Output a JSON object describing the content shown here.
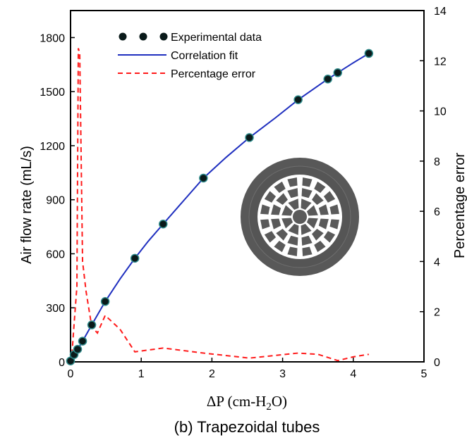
{
  "chart_data": {
    "type": "line",
    "xlabel_main": "ΔP (cm-H",
    "xlabel_sub": "2",
    "xlabel_end": "O)",
    "ylabel": "Air flow rate (mL/s)",
    "y2label": "Percentage error",
    "caption": "(b) Trapezoidal tubes",
    "xlim": [
      0,
      5
    ],
    "ylim": [
      0,
      1950
    ],
    "y2lim": [
      0,
      14
    ],
    "x_ticks": [
      0,
      1,
      2,
      3,
      4,
      5
    ],
    "y_ticks": [
      0,
      300,
      600,
      900,
      1200,
      1500,
      1800
    ],
    "y2_ticks": [
      0,
      2,
      4,
      6,
      8,
      10,
      12,
      14
    ],
    "grid": false,
    "legend_position": "top-left",
    "colors": {
      "experimental": "#0a1a1a",
      "experimental_edge": "#2e8a8a",
      "fit": "#1f2fbf",
      "error": "#ff1a1a",
      "icon": "#555555"
    },
    "series": [
      {
        "name": "Experimental data",
        "kind": "scatter",
        "axis": "left",
        "x": [
          0.0,
          0.05,
          0.1,
          0.17,
          0.3,
          0.49,
          0.91,
          1.31,
          1.88,
          2.53,
          3.22,
          3.64,
          3.78,
          4.22
        ],
        "y": [
          5,
          40,
          70,
          115,
          205,
          335,
          575,
          765,
          1020,
          1245,
          1455,
          1570,
          1605,
          1712
        ]
      },
      {
        "name": "Correlation fit",
        "kind": "line",
        "axis": "left",
        "x": [
          0.0,
          0.05,
          0.1,
          0.17,
          0.3,
          0.49,
          0.7,
          0.91,
          1.1,
          1.31,
          1.6,
          1.88,
          2.2,
          2.53,
          2.9,
          3.22,
          3.64,
          3.78,
          4.0,
          4.22
        ],
        "y": [
          0,
          40,
          70,
          115,
          205,
          335,
          460,
          575,
          670,
          765,
          895,
          1020,
          1135,
          1245,
          1355,
          1455,
          1570,
          1605,
          1660,
          1712
        ]
      },
      {
        "name": "Percentage error",
        "kind": "dashed-line",
        "axis": "right",
        "x": [
          0.02,
          0.05,
          0.09,
          0.11,
          0.13,
          0.17,
          0.22,
          0.3,
          0.38,
          0.49,
          0.7,
          0.91,
          1.31,
          1.88,
          2.53,
          3.22,
          3.5,
          3.78,
          4.0,
          4.22
        ],
        "y": [
          0.3,
          1.5,
          3.0,
          12.5,
          12.3,
          4.0,
          2.8,
          1.4,
          1.15,
          1.85,
          1.3,
          0.4,
          0.55,
          0.35,
          0.15,
          0.35,
          0.3,
          0.05,
          0.2,
          0.3
        ]
      }
    ]
  }
}
